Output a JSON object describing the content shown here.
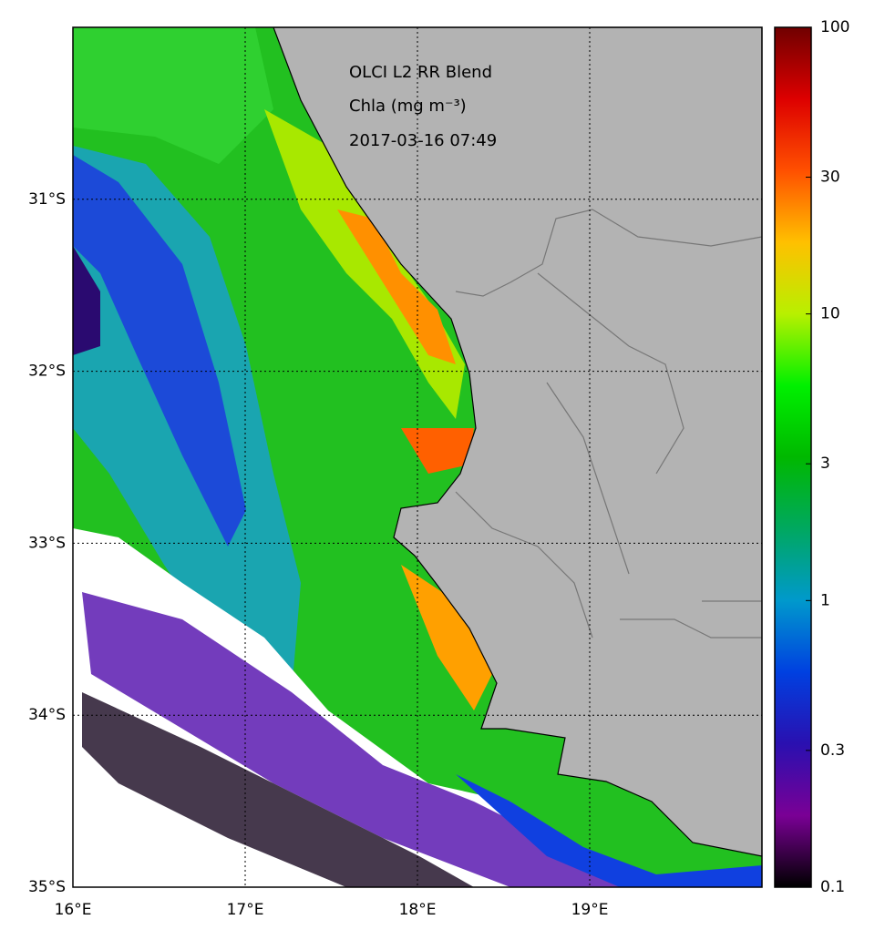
{
  "map": {
    "annotations": [
      "OLCI L2 RR Blend",
      "Chla (mg m⁻³)",
      "2017-03-16 07:49"
    ],
    "xlim": [
      16,
      20
    ],
    "ylim": [
      -35,
      -30
    ],
    "xticks": [
      {
        "value": 16,
        "label": "16°E"
      },
      {
        "value": 17,
        "label": "17°E"
      },
      {
        "value": 18,
        "label": "18°E"
      },
      {
        "value": 19,
        "label": "19°E"
      }
    ],
    "yticks": [
      {
        "value": -31,
        "label": "31°S"
      },
      {
        "value": -32,
        "label": "32°S"
      },
      {
        "value": -33,
        "label": "33°S"
      },
      {
        "value": -34,
        "label": "34°S"
      },
      {
        "value": -35,
        "label": "35°S"
      }
    ],
    "grid": true,
    "colorbar": {
      "lim": [
        0.1,
        100
      ],
      "log": true,
      "ticks": [
        0.1,
        0.3,
        1,
        3,
        10,
        30,
        100
      ],
      "colors": [
        "#000000",
        "#7a0095",
        "#2a10b0",
        "#0040e0",
        "#0099cc",
        "#00a860",
        "#00b800",
        "#00f000",
        "#b8f000",
        "#ffc000",
        "#ff5000",
        "#dd0000",
        "#700000"
      ]
    }
  }
}
